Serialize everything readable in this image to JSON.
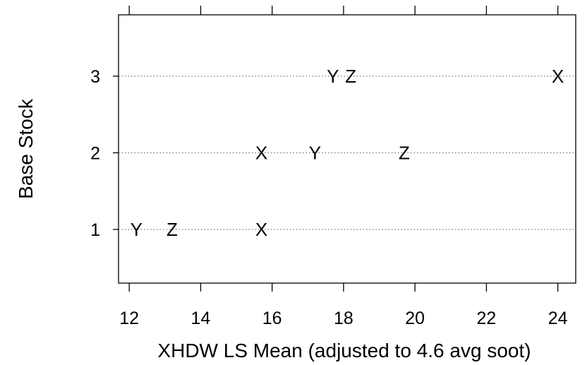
{
  "chart_data": {
    "type": "scatter",
    "xlabel": "XHDW LS Mean (adjusted to 4.6 avg soot)",
    "ylabel": "Base Stock",
    "xlim": [
      11.7,
      24.5
    ],
    "ylim": [
      0.3,
      3.8
    ],
    "x_ticks": [
      "12",
      "14",
      "16",
      "18",
      "20",
      "22",
      "24"
    ],
    "y_ticks": [
      "1",
      "2",
      "3"
    ],
    "grid": "dotted horizontal lines at each base stock",
    "points": [
      {
        "label": "Y",
        "x": 12.2,
        "y": 1
      },
      {
        "label": "Z",
        "x": 13.2,
        "y": 1
      },
      {
        "label": "X",
        "x": 15.7,
        "y": 1
      },
      {
        "label": "X",
        "x": 15.7,
        "y": 2
      },
      {
        "label": "Y",
        "x": 17.2,
        "y": 2
      },
      {
        "label": "Z",
        "x": 19.7,
        "y": 2
      },
      {
        "label": "Y",
        "x": 17.7,
        "y": 3
      },
      {
        "label": "Z",
        "x": 18.2,
        "y": 3
      },
      {
        "label": "X",
        "x": 24.0,
        "y": 3
      }
    ]
  }
}
